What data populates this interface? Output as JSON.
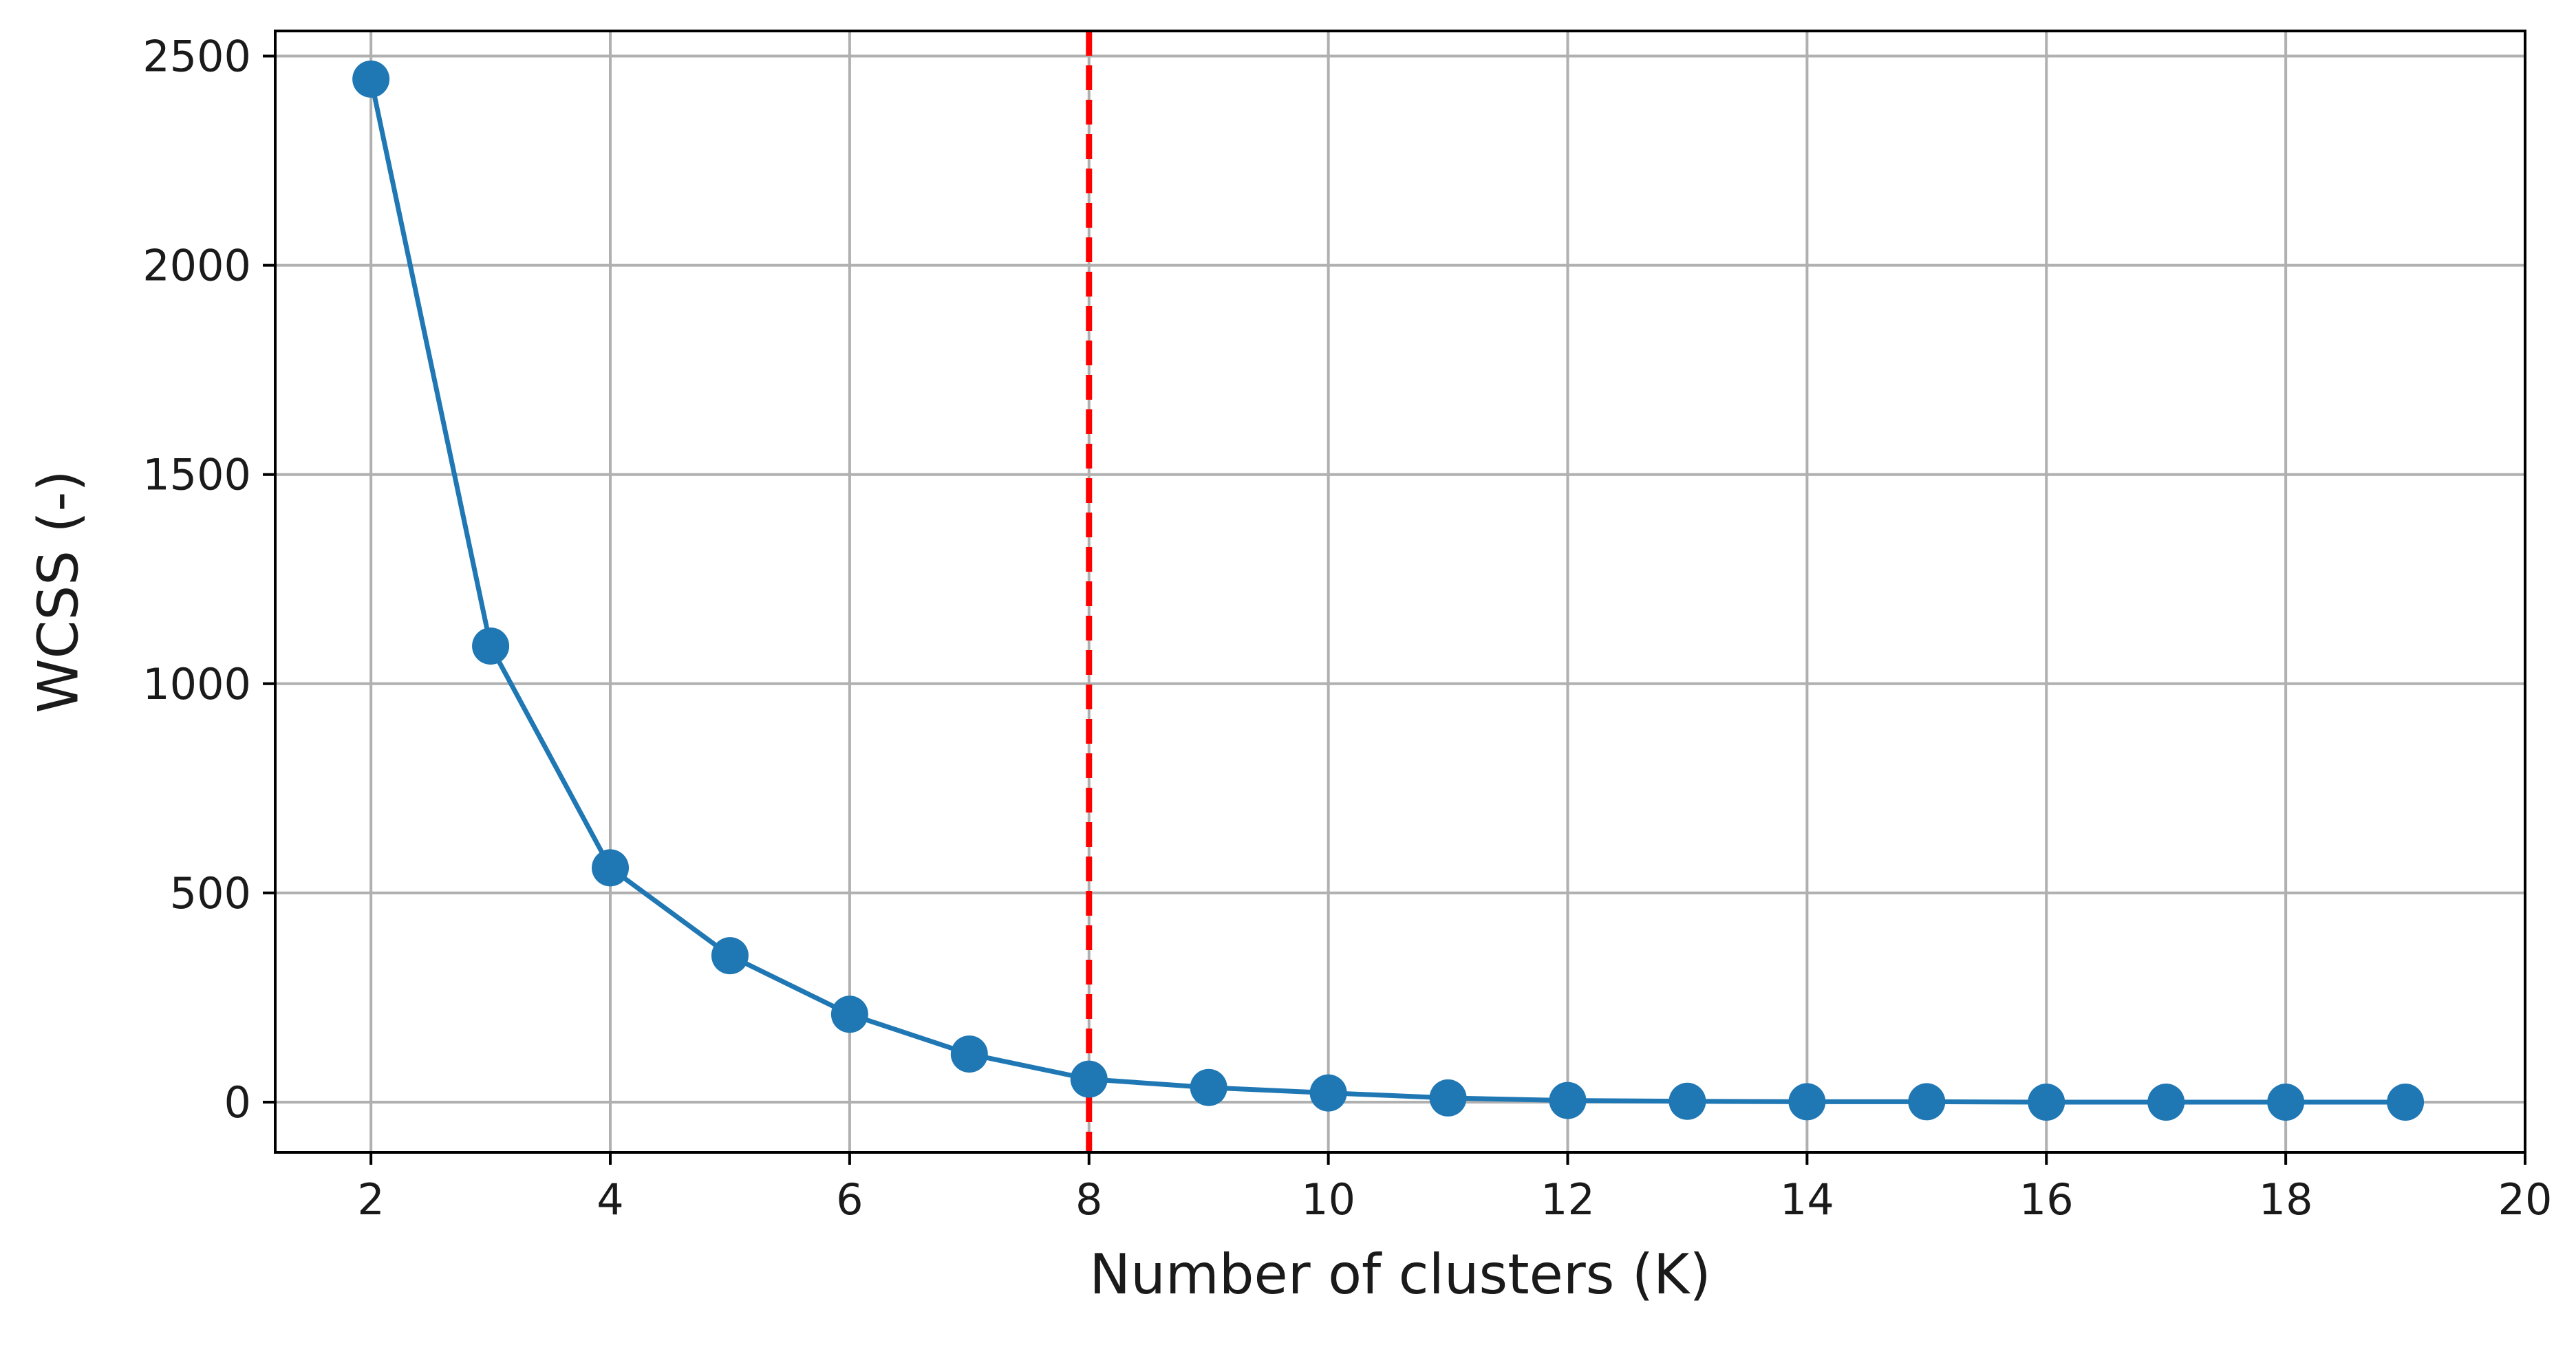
{
  "chart_data": {
    "type": "line",
    "title": "",
    "xlabel": "Number of clusters (K)",
    "ylabel": "WCSS (-)",
    "xlim": [
      1.2,
      20
    ],
    "ylim": [
      -120,
      2560
    ],
    "xticks": [
      2,
      4,
      6,
      8,
      10,
      12,
      14,
      16,
      18,
      20
    ],
    "yticks": [
      0,
      500,
      1000,
      1500,
      2000,
      2500
    ],
    "grid": true,
    "series": [
      {
        "x": [
          2,
          3,
          4,
          5,
          6,
          7,
          8,
          9,
          10,
          11,
          12,
          13,
          14,
          15,
          16,
          17,
          18,
          19
        ],
        "y": [
          2445,
          1090,
          560,
          350,
          210,
          115,
          55,
          35,
          22,
          10,
          4,
          2,
          1,
          1,
          0,
          0,
          0,
          0
        ],
        "color": "#1f77b4",
        "marker": "circle"
      }
    ],
    "reference_line": {
      "orientation": "vertical",
      "x": 8,
      "color": "#ff0000",
      "style": "dashed"
    }
  }
}
